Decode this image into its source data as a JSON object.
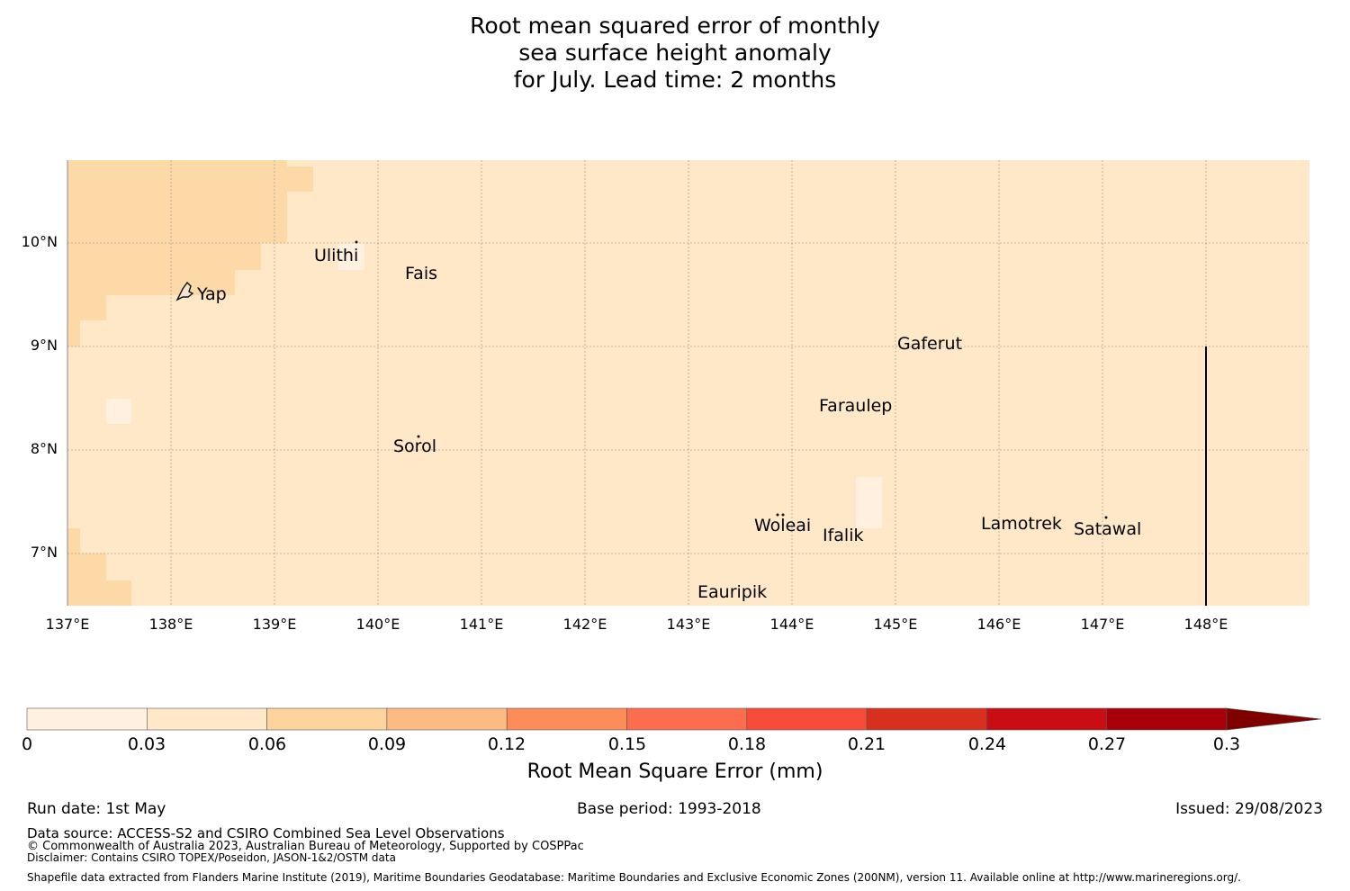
{
  "title": {
    "line1": "Root mean squared error of monthly",
    "line2": "sea surface height anomaly",
    "line3": "for July. Lead time: 2 months"
  },
  "map": {
    "lon_range": [
      137,
      149
    ],
    "lat_range": [
      6.5,
      10.8
    ],
    "ocean_color": "#fee8c8",
    "lon_ticks": [
      "137°E",
      "138°E",
      "139°E",
      "140°E",
      "141°E",
      "142°E",
      "143°E",
      "144°E",
      "145°E",
      "146°E",
      "147°E",
      "148°E"
    ],
    "lat_ticks": [
      "10°N",
      "9°N",
      "8°N",
      "7°N"
    ],
    "places": [
      {
        "name": "Ulithi",
        "lon": 139.75,
        "lat": 9.9
      },
      {
        "name": "Fais",
        "lon": 140.5,
        "lat": 9.75
      },
      {
        "name": "Yap",
        "lon": 138.3,
        "lat": 9.5
      },
      {
        "name": "Gaferut",
        "lon": 145.35,
        "lat": 9.0
      },
      {
        "name": "Faraulep",
        "lon": 144.65,
        "lat": 8.45
      },
      {
        "name": "Sorol",
        "lon": 140.4,
        "lat": 8.05
      },
      {
        "name": "Woleai",
        "lon": 143.9,
        "lat": 7.3
      },
      {
        "name": "Ifalik",
        "lon": 144.5,
        "lat": 7.2
      },
      {
        "name": "Lamotrek",
        "lon": 146.2,
        "lat": 7.3
      },
      {
        "name": "Satawal",
        "lon": 147.05,
        "lat": 7.25
      },
      {
        "name": "Eauripik",
        "lon": 143.35,
        "lat": 6.65
      }
    ],
    "boundary_line": {
      "lon": 148,
      "lat_from": 6.5,
      "lat_to": 9.0
    }
  },
  "colorbar": {
    "title": "Root Mean Square Error (mm)",
    "ticks": [
      "0",
      "0.03",
      "0.06",
      "0.09",
      "0.12",
      "0.15",
      "0.18",
      "0.21",
      "0.24",
      "0.27",
      "0.3"
    ],
    "colors": [
      "#fff0e0",
      "#fee8c8",
      "#fdd49e",
      "#fdbb84",
      "#fc8d59",
      "#fc6c4e",
      "#f84c3a",
      "#d7301f",
      "#c90d12",
      "#a8000b",
      "#7f0000"
    ]
  },
  "footer": {
    "run_date": "Run date: 1st May",
    "base_period": "Base period: 1993-2018",
    "issued": "Issued: 29/08/2023",
    "data_source": "Data source: ACCESS-S2 and CSIRO Combined Sea Level Observations",
    "copyright": "© Commonwealth of Australia 2023, Australian Bureau of Meteorology, Supported by COSPPac",
    "disclaimer": "Disclaimer: Contains CSIRO TOPEX/Poseidon, JASON-1&2/OSTM data",
    "shapefile": "Shapefile data extracted from Flanders Marine Institute (2019), Maritime Boundaries Geodatabase: Maritime Boundaries and Exclusive Economic Zones (200NM), version 11. Available online at http://www.marineregions.org/."
  }
}
